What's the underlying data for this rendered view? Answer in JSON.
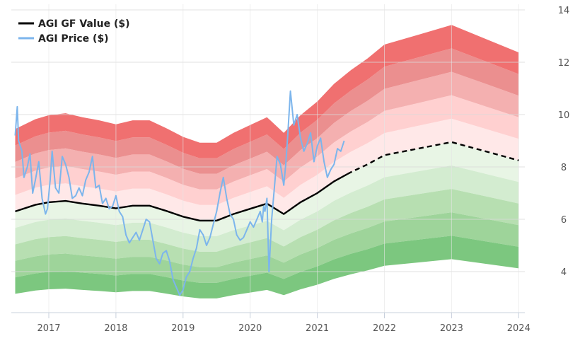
{
  "chart_data": {
    "type": "area",
    "title": "",
    "xlabel": "",
    "ylabel": "",
    "xlim": [
      2016.5,
      2024.05
    ],
    "ylim": [
      2.6,
      14.6
    ],
    "y_ticks": [
      4,
      6,
      8,
      10,
      12,
      14
    ],
    "x_ticks": [
      "2017",
      "2018",
      "2019",
      "2020",
      "2021",
      "2022",
      "2023",
      "2024"
    ],
    "grid": true,
    "legend_position": "top-left",
    "legend": [
      {
        "label": "AGI GF Value ($)",
        "color": "#000000"
      },
      {
        "label": "AGI Price ($)",
        "color": "#7cb5ec"
      }
    ],
    "gf_value": {
      "name": "AGI GF Value ($)",
      "x": [
        2016.5,
        2016.8,
        2017.0,
        2017.25,
        2017.5,
        2017.75,
        2018.0,
        2018.25,
        2018.5,
        2018.75,
        2019.0,
        2019.25,
        2019.5,
        2019.75,
        2020.0,
        2020.25,
        2020.5,
        2020.75,
        2021.0,
        2021.25,
        2021.5,
        2021.75,
        2022.0,
        2022.5,
        2023.0,
        2023.5,
        2024.0
      ],
      "y": [
        6.3,
        6.55,
        6.65,
        6.7,
        6.6,
        6.52,
        6.42,
        6.52,
        6.52,
        6.32,
        6.1,
        5.95,
        5.95,
        6.2,
        6.4,
        6.6,
        6.2,
        6.65,
        7.0,
        7.45,
        7.8,
        8.1,
        8.45,
        8.7,
        8.95,
        8.6,
        8.25
      ],
      "forecast_from": 2021.45
    },
    "band_multipliers": {
      "upper": [
        1.1,
        1.2,
        1.3,
        1.4,
        1.5
      ],
      "lower": [
        0.9,
        0.8,
        0.7,
        0.6,
        0.5
      ]
    },
    "band_colors": {
      "upper": [
        "#ffe8e8",
        "#ffd0d0",
        "#f4b0b0",
        "#eb8f8f",
        "#f07070"
      ],
      "lower": [
        "#e8f5e5",
        "#d3ecd0",
        "#b7dfb1",
        "#9ed49a",
        "#7cc77f"
      ]
    },
    "price": {
      "name": "AGI Price ($)",
      "x": [
        2016.5,
        2016.53,
        2016.55,
        2016.6,
        2016.63,
        2016.68,
        2016.72,
        2016.76,
        2016.8,
        2016.85,
        2016.9,
        2016.95,
        2016.98,
        2017.02,
        2017.05,
        2017.1,
        2017.15,
        2017.2,
        2017.25,
        2017.3,
        2017.35,
        2017.4,
        2017.45,
        2017.5,
        2017.55,
        2017.6,
        2017.65,
        2017.7,
        2017.75,
        2017.8,
        2017.85,
        2017.9,
        2017.95,
        2018.0,
        2018.05,
        2018.1,
        2018.15,
        2018.2,
        2018.25,
        2018.3,
        2018.35,
        2018.4,
        2018.45,
        2018.5,
        2018.55,
        2018.6,
        2018.65,
        2018.7,
        2018.75,
        2018.8,
        2018.85,
        2018.9,
        2018.95,
        2019.0,
        2019.05,
        2019.1,
        2019.15,
        2019.2,
        2019.25,
        2019.3,
        2019.35,
        2019.4,
        2019.45,
        2019.5,
        2019.55,
        2019.6,
        2019.65,
        2019.7,
        2019.75,
        2019.8,
        2019.85,
        2019.9,
        2019.95,
        2020.0,
        2020.05,
        2020.1,
        2020.15,
        2020.18,
        2020.2,
        2020.22,
        2020.25,
        2020.28,
        2020.32,
        2020.36,
        2020.4,
        2020.45,
        2020.5,
        2020.53,
        2020.56,
        2020.6,
        2020.65,
        2020.7,
        2020.75,
        2020.8,
        2020.85,
        2020.9,
        2020.95,
        2021.0,
        2021.05,
        2021.1,
        2021.15,
        2021.2,
        2021.25,
        2021.3,
        2021.35,
        2021.4
      ],
      "y": [
        9.2,
        10.3,
        9.0,
        8.6,
        7.6,
        8.0,
        8.5,
        7.0,
        7.5,
        8.2,
        6.8,
        6.2,
        6.4,
        7.5,
        8.6,
        7.2,
        7.0,
        8.4,
        8.1,
        7.6,
        6.8,
        6.9,
        7.2,
        6.9,
        7.5,
        7.8,
        8.4,
        7.2,
        7.3,
        6.6,
        6.8,
        6.4,
        6.5,
        6.9,
        6.3,
        6.1,
        5.4,
        5.1,
        5.3,
        5.5,
        5.2,
        5.6,
        6.0,
        5.9,
        5.2,
        4.5,
        4.3,
        4.7,
        4.8,
        4.4,
        3.7,
        3.4,
        3.1,
        3.3,
        3.8,
        4.0,
        4.5,
        4.9,
        5.6,
        5.4,
        5.0,
        5.3,
        5.8,
        6.3,
        7.0,
        7.6,
        6.8,
        6.2,
        6.0,
        5.4,
        5.2,
        5.3,
        5.6,
        5.9,
        5.7,
        6.0,
        6.3,
        5.9,
        6.5,
        6.3,
        6.8,
        4.0,
        6.0,
        7.2,
        8.4,
        8.1,
        7.3,
        8.1,
        9.2,
        10.9,
        9.6,
        10.0,
        9.1,
        8.6,
        8.9,
        9.3,
        8.2,
        8.8,
        9.1,
        8.2,
        7.6,
        7.9,
        8.1,
        8.7,
        8.6,
        9.0
      ]
    }
  }
}
